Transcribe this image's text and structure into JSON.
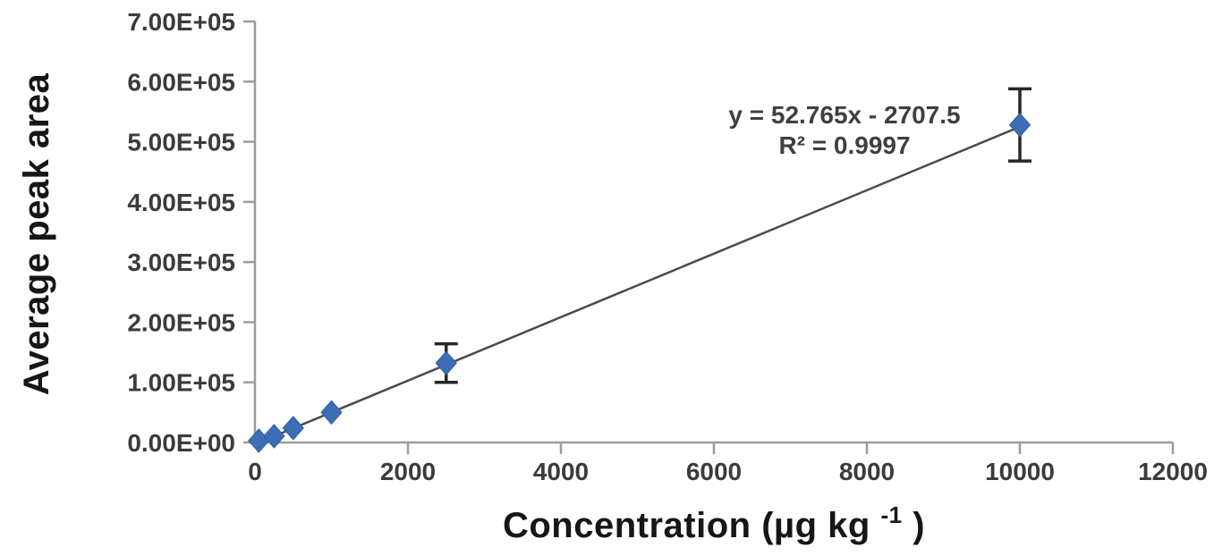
{
  "page": {
    "background": "#ffffff",
    "description": "Calibration curve scatter plot with linear trendline and error bars"
  },
  "chart_data": {
    "type": "scatter",
    "title": "",
    "ylabel": "Average peak area",
    "xlabel": {
      "prefix": "Concentration (µg kg",
      "superscript": "-1",
      "suffix": ")"
    },
    "xlim": [
      0,
      12000
    ],
    "ylim": [
      0,
      700000
    ],
    "grid": false,
    "legend": "none",
    "x_ticks": [
      {
        "value": 0,
        "label": "0"
      },
      {
        "value": 2000,
        "label": "2000"
      },
      {
        "value": 4000,
        "label": "4000"
      },
      {
        "value": 6000,
        "label": "6000"
      },
      {
        "value": 8000,
        "label": "8000"
      },
      {
        "value": 10000,
        "label": "10000"
      },
      {
        "value": 12000,
        "label": "12000"
      }
    ],
    "y_ticks": [
      {
        "value": 0,
        "label": "0.00E+00"
      },
      {
        "value": 100000,
        "label": "1.00E+05"
      },
      {
        "value": 200000,
        "label": "2.00E+05"
      },
      {
        "value": 300000,
        "label": "3.00E+05"
      },
      {
        "value": 400000,
        "label": "4.00E+05"
      },
      {
        "value": 500000,
        "label": "5.00E+05"
      },
      {
        "value": 600000,
        "label": "6.00E+05"
      },
      {
        "value": 700000,
        "label": "7.00E+05"
      }
    ],
    "points": [
      {
        "x": 50,
        "y": 3000
      },
      {
        "x": 250,
        "y": 10500
      },
      {
        "x": 500,
        "y": 24000
      },
      {
        "x": 1000,
        "y": 50000
      },
      {
        "x": 2500,
        "y": 132000,
        "y_error": 32000
      },
      {
        "x": 10000,
        "y": 528000,
        "y_error": 60000
      }
    ],
    "trendline": {
      "type": "linear",
      "slope": 52.765,
      "intercept": -2707.5,
      "x_start": 51.3,
      "x_end": 10000
    },
    "annotation": {
      "line1": "y = 52.765x - 2707.5",
      "line2": "R² = 0.9997"
    },
    "colors": {
      "marker": "#3E6DB5",
      "marker_stroke": "#2d5fa3",
      "trendline": "#4a4a4a",
      "axis": "#9c9c9c",
      "tick_label": "#3b3b3b",
      "axis_title": "#161616",
      "error_bar": "#262626",
      "equation": "#3f3f3f",
      "background": "#ffffff"
    }
  }
}
